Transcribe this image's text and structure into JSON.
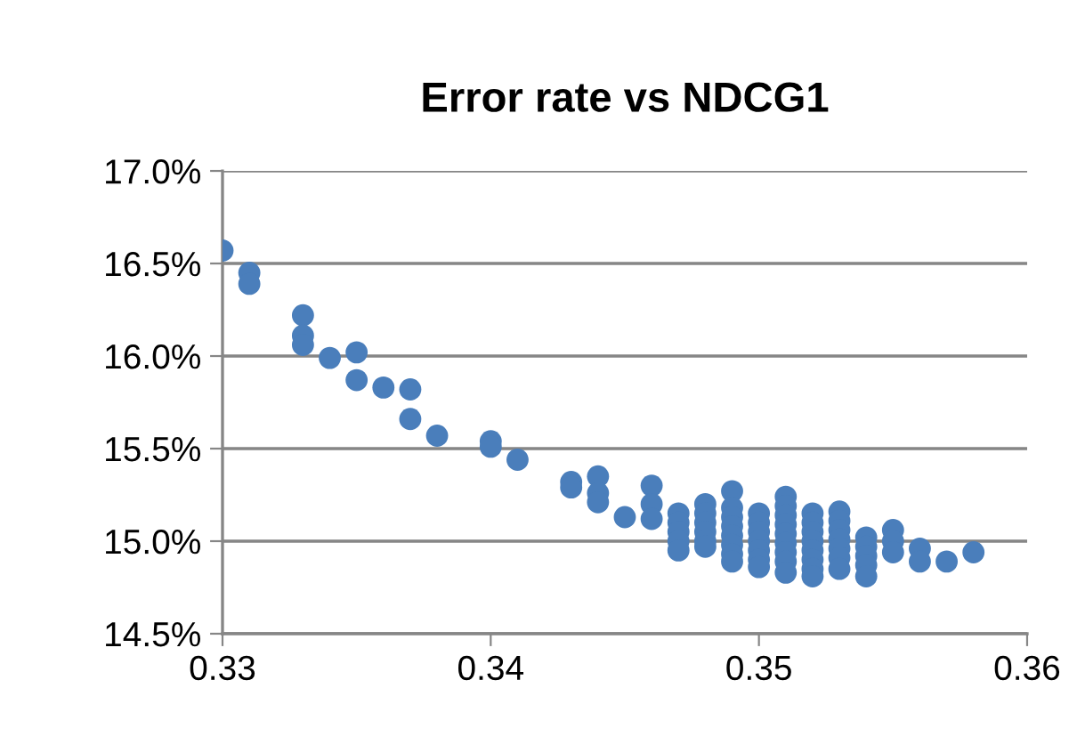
{
  "chart_data": {
    "type": "scatter",
    "title": "Error rate vs NDCG1",
    "series": [
      {
        "color": "#4a7ebb",
        "x": [
          0.33,
          0.331,
          0.331,
          0.333,
          0.333,
          0.333,
          0.334,
          0.335,
          0.335,
          0.336,
          0.337,
          0.337,
          0.338,
          0.34,
          0.34,
          0.341,
          0.343,
          0.343,
          0.344,
          0.344,
          0.344,
          0.345,
          0.346,
          0.346,
          0.346,
          0.347,
          0.347,
          0.347,
          0.347,
          0.347,
          0.348,
          0.348,
          0.348,
          0.348,
          0.348,
          0.348,
          0.349,
          0.349,
          0.349,
          0.349,
          0.349,
          0.349,
          0.349,
          0.349,
          0.35,
          0.35,
          0.35,
          0.35,
          0.35,
          0.35,
          0.35,
          0.351,
          0.351,
          0.351,
          0.351,
          0.351,
          0.351,
          0.351,
          0.351,
          0.351,
          0.352,
          0.352,
          0.352,
          0.352,
          0.352,
          0.352,
          0.352,
          0.352,
          0.353,
          0.353,
          0.353,
          0.353,
          0.353,
          0.353,
          0.353,
          0.354,
          0.354,
          0.354,
          0.354,
          0.354,
          0.355,
          0.355,
          0.355,
          0.356,
          0.356,
          0.357,
          0.358
        ],
        "values": [
          16.57,
          16.45,
          16.39,
          16.22,
          16.11,
          16.06,
          15.99,
          16.02,
          15.87,
          15.83,
          15.82,
          15.66,
          15.57,
          15.54,
          15.51,
          15.44,
          15.32,
          15.29,
          15.35,
          15.26,
          15.21,
          15.13,
          15.3,
          15.2,
          15.12,
          15.15,
          15.1,
          15.05,
          15.0,
          14.95,
          15.2,
          15.15,
          15.1,
          15.05,
          15.0,
          14.97,
          15.27,
          15.18,
          15.13,
          15.08,
          15.03,
          14.98,
          14.93,
          14.89,
          15.15,
          15.1,
          15.05,
          15.0,
          14.95,
          14.9,
          14.86,
          15.24,
          15.19,
          15.14,
          15.09,
          15.04,
          14.99,
          14.94,
          14.89,
          14.83,
          15.15,
          15.1,
          15.05,
          15.0,
          14.95,
          14.9,
          14.85,
          14.81,
          15.16,
          15.11,
          15.06,
          15.01,
          14.96,
          14.91,
          14.85,
          15.02,
          14.97,
          14.92,
          14.87,
          14.81,
          15.06,
          15.0,
          14.94,
          14.96,
          14.89,
          14.89,
          14.94
        ]
      }
    ],
    "marker": "circle",
    "xlim": [
      0.33,
      0.36
    ],
    "xticks": [
      0.33,
      0.34,
      0.35,
      0.36
    ],
    "ylim": [
      14.5,
      17.0
    ],
    "yticks": [
      {
        "value": 14.5,
        "label": "14.5%"
      },
      {
        "value": 15.0,
        "label": "15.0%"
      },
      {
        "value": 15.5,
        "label": "15.5%"
      },
      {
        "value": 16.0,
        "label": "16.0%"
      },
      {
        "value": 16.5,
        "label": "16.5%"
      },
      {
        "value": 17.0,
        "label": "17.0%"
      }
    ],
    "grid": "y",
    "legend": false
  }
}
